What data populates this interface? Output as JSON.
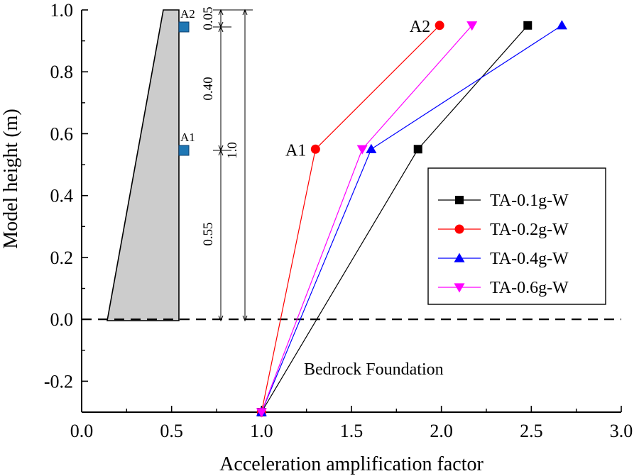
{
  "chart_data": {
    "type": "line",
    "xlabel": "Acceleration amplification factor",
    "ylabel": "Model height (m)",
    "xlim": [
      0.0,
      3.0
    ],
    "ylim": [
      -0.3,
      1.0
    ],
    "xticks": [
      "0.0",
      "0.5",
      "1.0",
      "1.5",
      "2.0",
      "2.5",
      "3.0"
    ],
    "yticks": [
      "-0.2",
      "0.0",
      "0.2",
      "0.4",
      "0.6",
      "0.8",
      "1.0"
    ],
    "grid": false,
    "legend_position": "right",
    "series": [
      {
        "name": "TA-0.1g-W",
        "color": "#000000",
        "marker": "square",
        "x": [
          1.0,
          1.87,
          2.48
        ],
        "y": [
          -0.3,
          0.55,
          0.95
        ]
      },
      {
        "name": "TA-0.2g-W",
        "color": "#ff0000",
        "marker": "circle",
        "x": [
          1.0,
          1.3,
          1.99
        ],
        "y": [
          -0.3,
          0.55,
          0.95
        ]
      },
      {
        "name": "TA-0.4g-W",
        "color": "#0000ff",
        "marker": "triangle-up",
        "x": [
          1.0,
          1.61,
          2.67
        ],
        "y": [
          -0.3,
          0.55,
          0.95
        ]
      },
      {
        "name": "TA-0.6g-W",
        "color": "#ff00ff",
        "marker": "triangle-down",
        "x": [
          1.0,
          1.56,
          2.17
        ],
        "y": [
          -0.3,
          0.55,
          0.95
        ]
      }
    ],
    "annotations": {
      "point_labels": [
        "A1",
        "A2"
      ],
      "sensor_labels": [
        "A1",
        "A2"
      ],
      "dimensions": [
        "0.05",
        "0.40",
        "0.55",
        "1.0"
      ],
      "foundation_label": "Bedrock Foundation",
      "ground_line_y": 0.0
    },
    "model_shape_color": "#cccccc",
    "sensor_color": "#1f77b4"
  }
}
